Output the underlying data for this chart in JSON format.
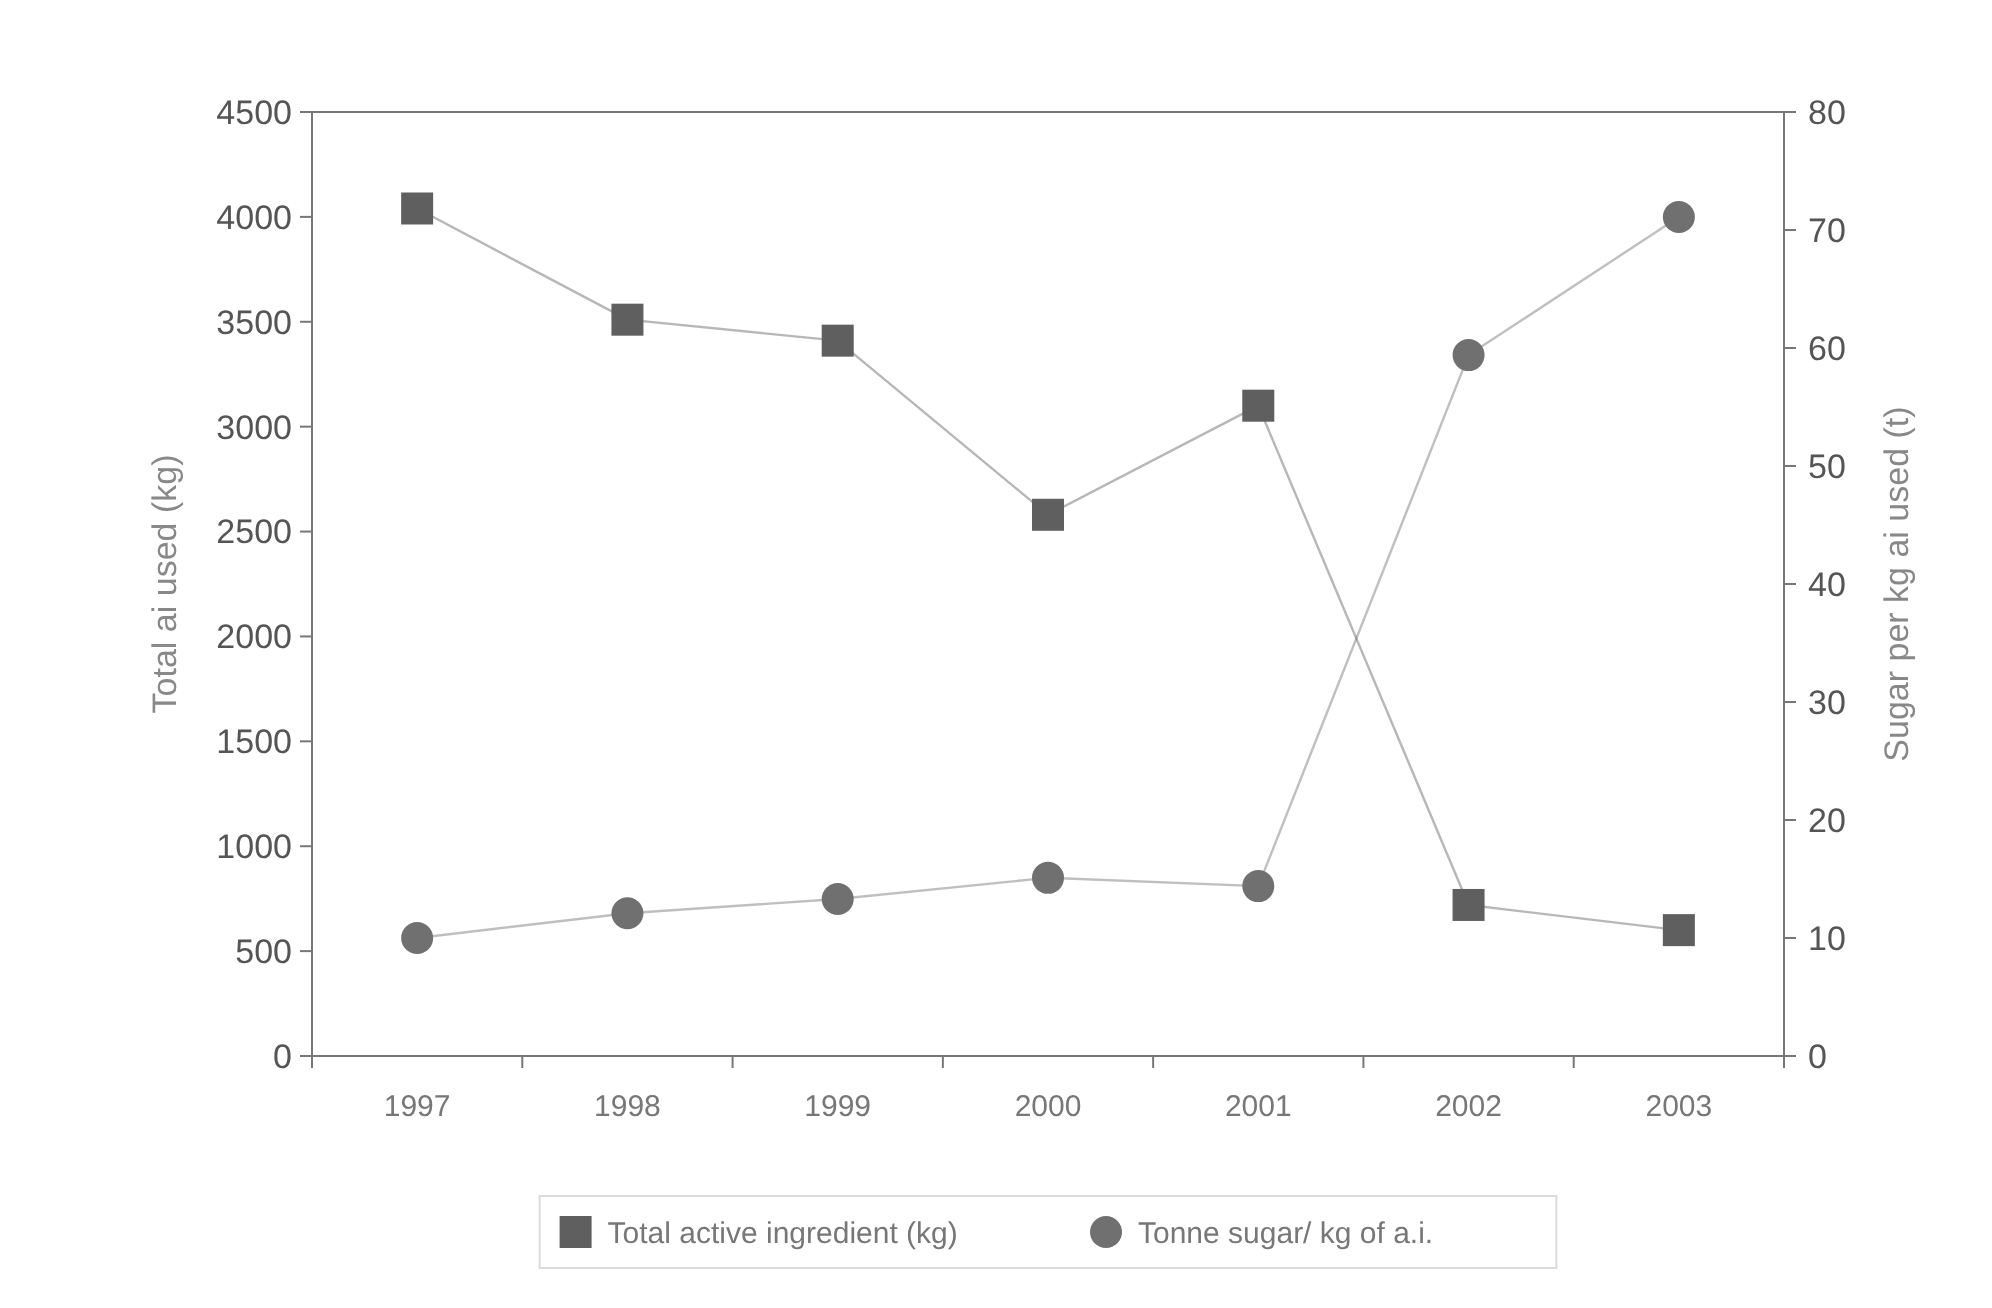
{
  "chart_data": {
    "type": "line",
    "categories": [
      "1997",
      "1998",
      "1999",
      "2000",
      "2001",
      "2002",
      "2003"
    ],
    "ylabel": "Total ai used  (kg)",
    "y2label": "Sugar per kg ai used (t)",
    "ylim": [
      0,
      4500
    ],
    "yticks": [
      0,
      500,
      1000,
      1500,
      2000,
      2500,
      3000,
      3500,
      4000,
      4500
    ],
    "y2lim": [
      0,
      80
    ],
    "y2ticks": [
      0,
      10,
      20,
      30,
      40,
      50,
      60,
      70,
      80
    ],
    "series": [
      {
        "name": "Total active ingredient (kg)",
        "color": "#5f5f5f",
        "marker": "square",
        "values": [
          4040,
          3510,
          3410,
          2580,
          3100,
          720,
          600
        ]
      },
      {
        "name": "Tonne sugar/ kg of a.i.",
        "color": "#707070",
        "marker": "circle",
        "axis": "y2",
        "values": [
          10.0,
          12.1,
          13.3,
          15.1,
          14.4,
          59.4,
          71.1
        ]
      }
    ],
    "grid": false,
    "legend": "bottom"
  }
}
